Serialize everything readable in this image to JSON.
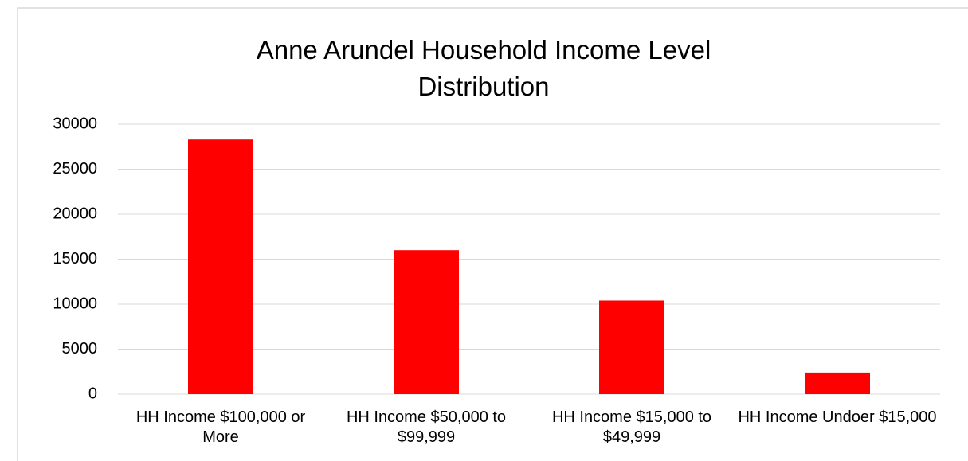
{
  "chart_data": {
    "type": "bar",
    "title": "Anne Arundel Household Income Level Distribution",
    "categories": [
      "HH Income $100,000 or More",
      "HH Income $50,000 to $99,999",
      "HH Income $15,000 to $49,999",
      "HH Income Undoer $15,000"
    ],
    "values": [
      28300,
      16000,
      10400,
      2400
    ],
    "color": "#ff0000",
    "ylim": [
      0,
      30000
    ],
    "yticks": [
      0,
      5000,
      10000,
      15000,
      20000,
      25000,
      30000
    ],
    "grid": true
  }
}
